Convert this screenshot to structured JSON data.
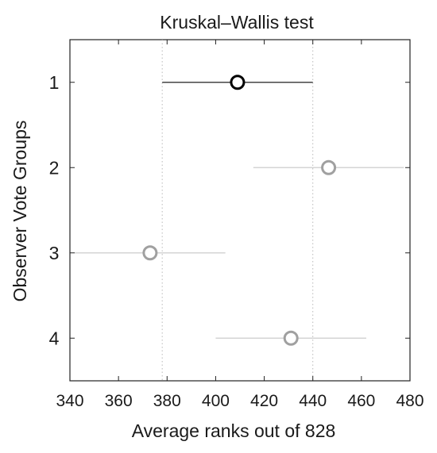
{
  "chart_data": {
    "type": "scatter",
    "title": "Kruskal–Wallis test",
    "xlabel": "Average ranks out of 828",
    "ylabel": "Observer Vote Groups",
    "xlim": [
      340,
      480
    ],
    "xticks": [
      340,
      360,
      380,
      400,
      420,
      440,
      460,
      480
    ],
    "ylim": [
      0.5,
      4.5
    ],
    "categories": [
      "1",
      "2",
      "3",
      "4"
    ],
    "series": [
      {
        "values": [
          {
            "group": "1",
            "mean": 409,
            "lower": 378,
            "upper": 440,
            "highlighted": true
          },
          {
            "group": "2",
            "mean": 446.5,
            "lower": 415.5,
            "upper": 477.5,
            "highlighted": false
          },
          {
            "group": "3",
            "mean": 373,
            "lower": 342,
            "upper": 404,
            "highlighted": false
          },
          {
            "group": "4",
            "mean": 431,
            "lower": 400,
            "upper": 462,
            "highlighted": false
          }
        ]
      }
    ],
    "reference_lines": [
      378,
      440
    ],
    "grid": false,
    "colors": {
      "highlight_marker": "#000000",
      "highlight_line": "#444444",
      "other_marker": "#a0a0a0",
      "other_line": "#d4d4d4",
      "reference_line": "#b8b8b8",
      "axes": "#222222"
    }
  }
}
